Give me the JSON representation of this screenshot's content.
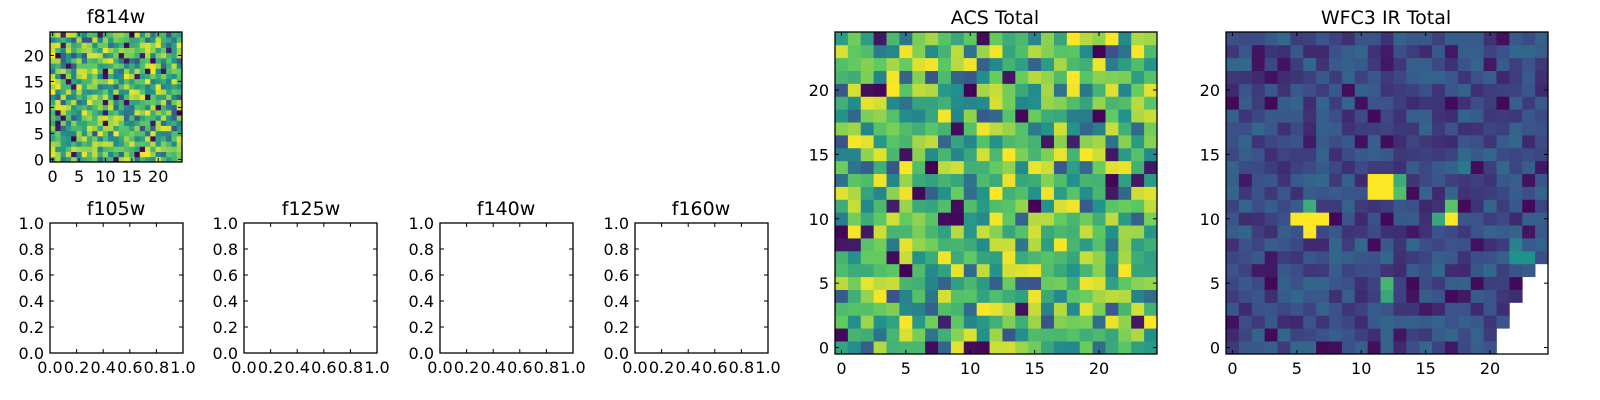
{
  "colors": {
    "cmap": [
      "#440154",
      "#3b528b",
      "#21918c",
      "#5ec962",
      "#fde725"
    ],
    "background": "#ffffff"
  },
  "chart_data": [
    {
      "id": "f814w",
      "type": "heatmap",
      "title": "f814w",
      "grid_size": 25,
      "seed": 3,
      "style": "acs",
      "xticks": [
        0,
        5,
        10,
        15,
        20
      ],
      "yticks": [
        0,
        5,
        10,
        15,
        20
      ],
      "xlim": [
        -0.5,
        24.5
      ],
      "ylim": [
        -0.5,
        24.5
      ]
    },
    {
      "id": "f105w",
      "type": "empty",
      "title": "f105w",
      "xticks": [
        "0.0",
        "0.2",
        "0.4",
        "0.6",
        "0.8",
        "1.0"
      ],
      "yticks": [
        "0.0",
        "0.2",
        "0.4",
        "0.6",
        "0.8",
        "1.0"
      ],
      "xlim": [
        0,
        1
      ],
      "ylim": [
        0,
        1
      ]
    },
    {
      "id": "f125w",
      "type": "empty",
      "title": "f125w",
      "xticks": [
        "0.0",
        "0.2",
        "0.4",
        "0.6",
        "0.8",
        "1.0"
      ],
      "yticks": [
        "0.0",
        "0.2",
        "0.4",
        "0.6",
        "0.8",
        "1.0"
      ],
      "xlim": [
        0,
        1
      ],
      "ylim": [
        0,
        1
      ]
    },
    {
      "id": "f140w",
      "type": "empty",
      "title": "f140w",
      "xticks": [
        "0.0",
        "0.2",
        "0.4",
        "0.6",
        "0.8",
        "1.0"
      ],
      "yticks": [
        "0.0",
        "0.2",
        "0.4",
        "0.6",
        "0.8",
        "1.0"
      ],
      "xlim": [
        0,
        1
      ],
      "ylim": [
        0,
        1
      ]
    },
    {
      "id": "f160w",
      "type": "empty",
      "title": "f160w",
      "xticks": [
        "0.0",
        "0.2",
        "0.4",
        "0.6",
        "0.8",
        "1.0"
      ],
      "yticks": [
        "0.0",
        "0.2",
        "0.4",
        "0.6",
        "0.8",
        "1.0"
      ],
      "xlim": [
        0,
        1
      ],
      "ylim": [
        0,
        1
      ]
    },
    {
      "id": "acs_total",
      "type": "heatmap",
      "title": "ACS Total",
      "grid_size": 25,
      "seed": 11,
      "style": "acs",
      "xticks": [
        0,
        5,
        10,
        15,
        20
      ],
      "yticks": [
        0,
        5,
        10,
        15,
        20
      ],
      "xlim": [
        -0.5,
        24.5
      ],
      "ylim": [
        -0.5,
        24.5
      ]
    },
    {
      "id": "wfc3_ir_total",
      "type": "heatmap",
      "title": "WFC3 IR Total",
      "grid_size": 25,
      "seed": 29,
      "style": "ir",
      "xticks": [
        0,
        5,
        10,
        15,
        20
      ],
      "yticks": [
        0,
        5,
        10,
        15,
        20
      ],
      "xlim": [
        -0.5,
        24.5
      ],
      "ylim": [
        -0.5,
        24.5
      ],
      "bright_cells": [
        [
          11,
          13,
          1.0
        ],
        [
          12,
          13,
          1.0
        ],
        [
          11,
          12,
          1.0
        ],
        [
          12,
          12,
          1.0
        ],
        [
          13,
          12,
          0.7
        ],
        [
          13,
          13,
          0.62
        ],
        [
          5,
          10,
          1.0
        ],
        [
          6,
          10,
          1.0
        ],
        [
          7,
          10,
          1.0
        ],
        [
          6,
          9,
          1.0
        ],
        [
          6,
          11,
          0.62
        ],
        [
          17,
          10,
          1.0
        ],
        [
          17,
          11,
          0.72
        ],
        [
          16,
          10,
          0.6
        ],
        [
          12,
          4,
          0.6
        ],
        [
          12,
          5,
          0.66
        ],
        [
          22,
          7,
          0.5
        ],
        [
          23,
          7,
          0.5
        ],
        [
          22,
          8,
          0.44
        ],
        [
          18,
          14,
          0.4
        ]
      ],
      "masked_cells": [
        [
          24,
          6
        ],
        [
          23,
          5
        ],
        [
          24,
          5
        ],
        [
          23,
          4
        ],
        [
          24,
          4
        ],
        [
          22,
          3
        ],
        [
          23,
          3
        ],
        [
          24,
          3
        ],
        [
          22,
          2
        ],
        [
          23,
          2
        ],
        [
          24,
          2
        ],
        [
          21,
          1
        ],
        [
          22,
          1
        ],
        [
          23,
          1
        ],
        [
          24,
          1
        ],
        [
          21,
          0
        ],
        [
          22,
          0
        ],
        [
          23,
          0
        ],
        [
          24,
          0
        ]
      ]
    }
  ]
}
